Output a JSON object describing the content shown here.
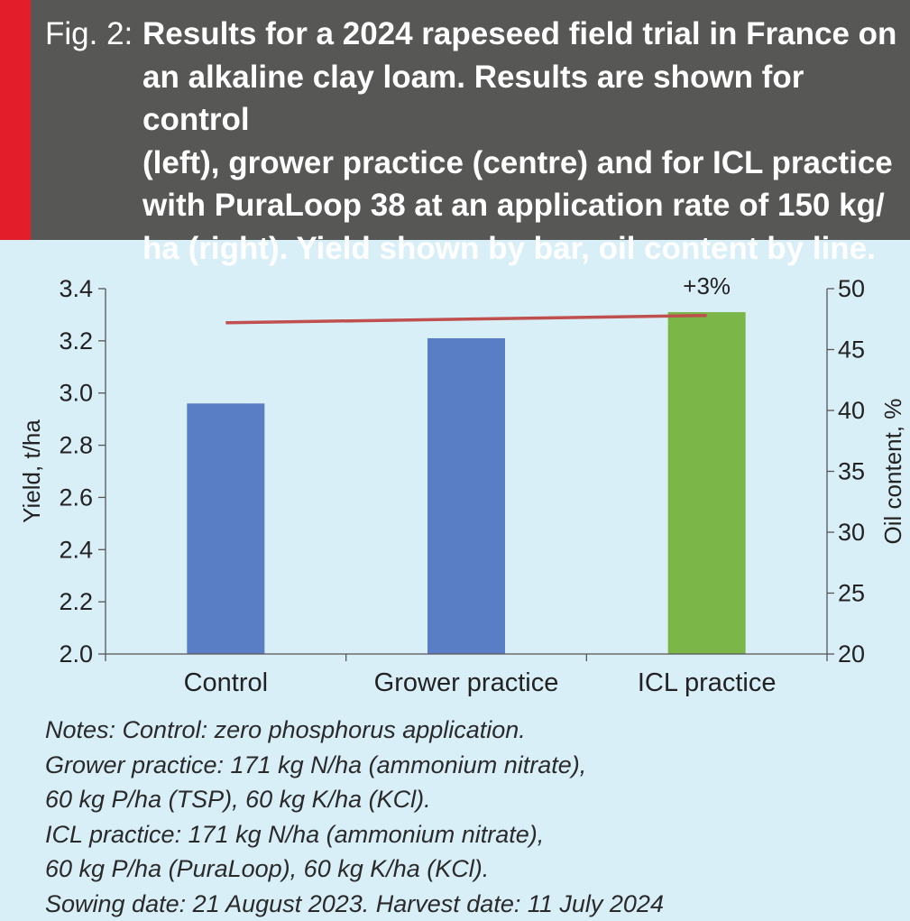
{
  "header": {
    "fig_label": "Fig. 2:",
    "title_lines": [
      "Results for a 2024 rapeseed field trial in France on",
      "an alkaline clay loam. Results are shown for control",
      "(left), grower practice (centre) and for ICL practice",
      "with PuraLoop 38 at an application rate of 150 kg/",
      "ha (right). Yield shown by bar, oil content by line."
    ]
  },
  "colors": {
    "header_bg": "#575756",
    "accent": "#e41d2b",
    "chart_bg": "#d9eff8",
    "bar_blue": "#5a7ec5",
    "bar_green": "#7ab648",
    "line": "#c0504d"
  },
  "chart_data": {
    "type": "bar",
    "categories": [
      "Control",
      "Grower practice",
      "ICL practice"
    ],
    "series": [
      {
        "axis": "left",
        "type": "bar",
        "values": [
          2.96,
          3.21,
          3.31
        ],
        "colors": [
          "#5a7ec5",
          "#5a7ec5",
          "#7ab648"
        ]
      },
      {
        "axis": "right",
        "type": "line",
        "values": [
          47.2,
          47.5,
          47.8
        ],
        "color": "#c0504d"
      }
    ],
    "ylabel": "Yield, t/ha",
    "ylim": [
      2.0,
      3.4
    ],
    "yticks": [
      "2.0",
      "2.2",
      "2.4",
      "2.6",
      "2.8",
      "3.0",
      "3.2",
      "3.4"
    ],
    "y2label": "Oil content, %",
    "y2lim": [
      20,
      50
    ],
    "y2ticks": [
      "20",
      "25",
      "30",
      "35",
      "40",
      "45",
      "50"
    ],
    "annotations": [
      {
        "category": "ICL practice",
        "text": "+3%"
      }
    ],
    "grid": false,
    "legend": "none"
  },
  "notes": [
    "Notes: Control: zero phosphorus application.",
    "Grower practice: 171 kg N/ha (ammonium nitrate),",
    "60 kg P/ha (TSP), 60 kg K/ha (KCl).",
    "ICL practice: 171 kg N/ha (ammonium nitrate),",
    "60 kg P/ha (PuraLoop), 60 kg K/ha (KCl).",
    "Sowing date: 21 August 2023. Harvest date: 11 July 2024"
  ]
}
